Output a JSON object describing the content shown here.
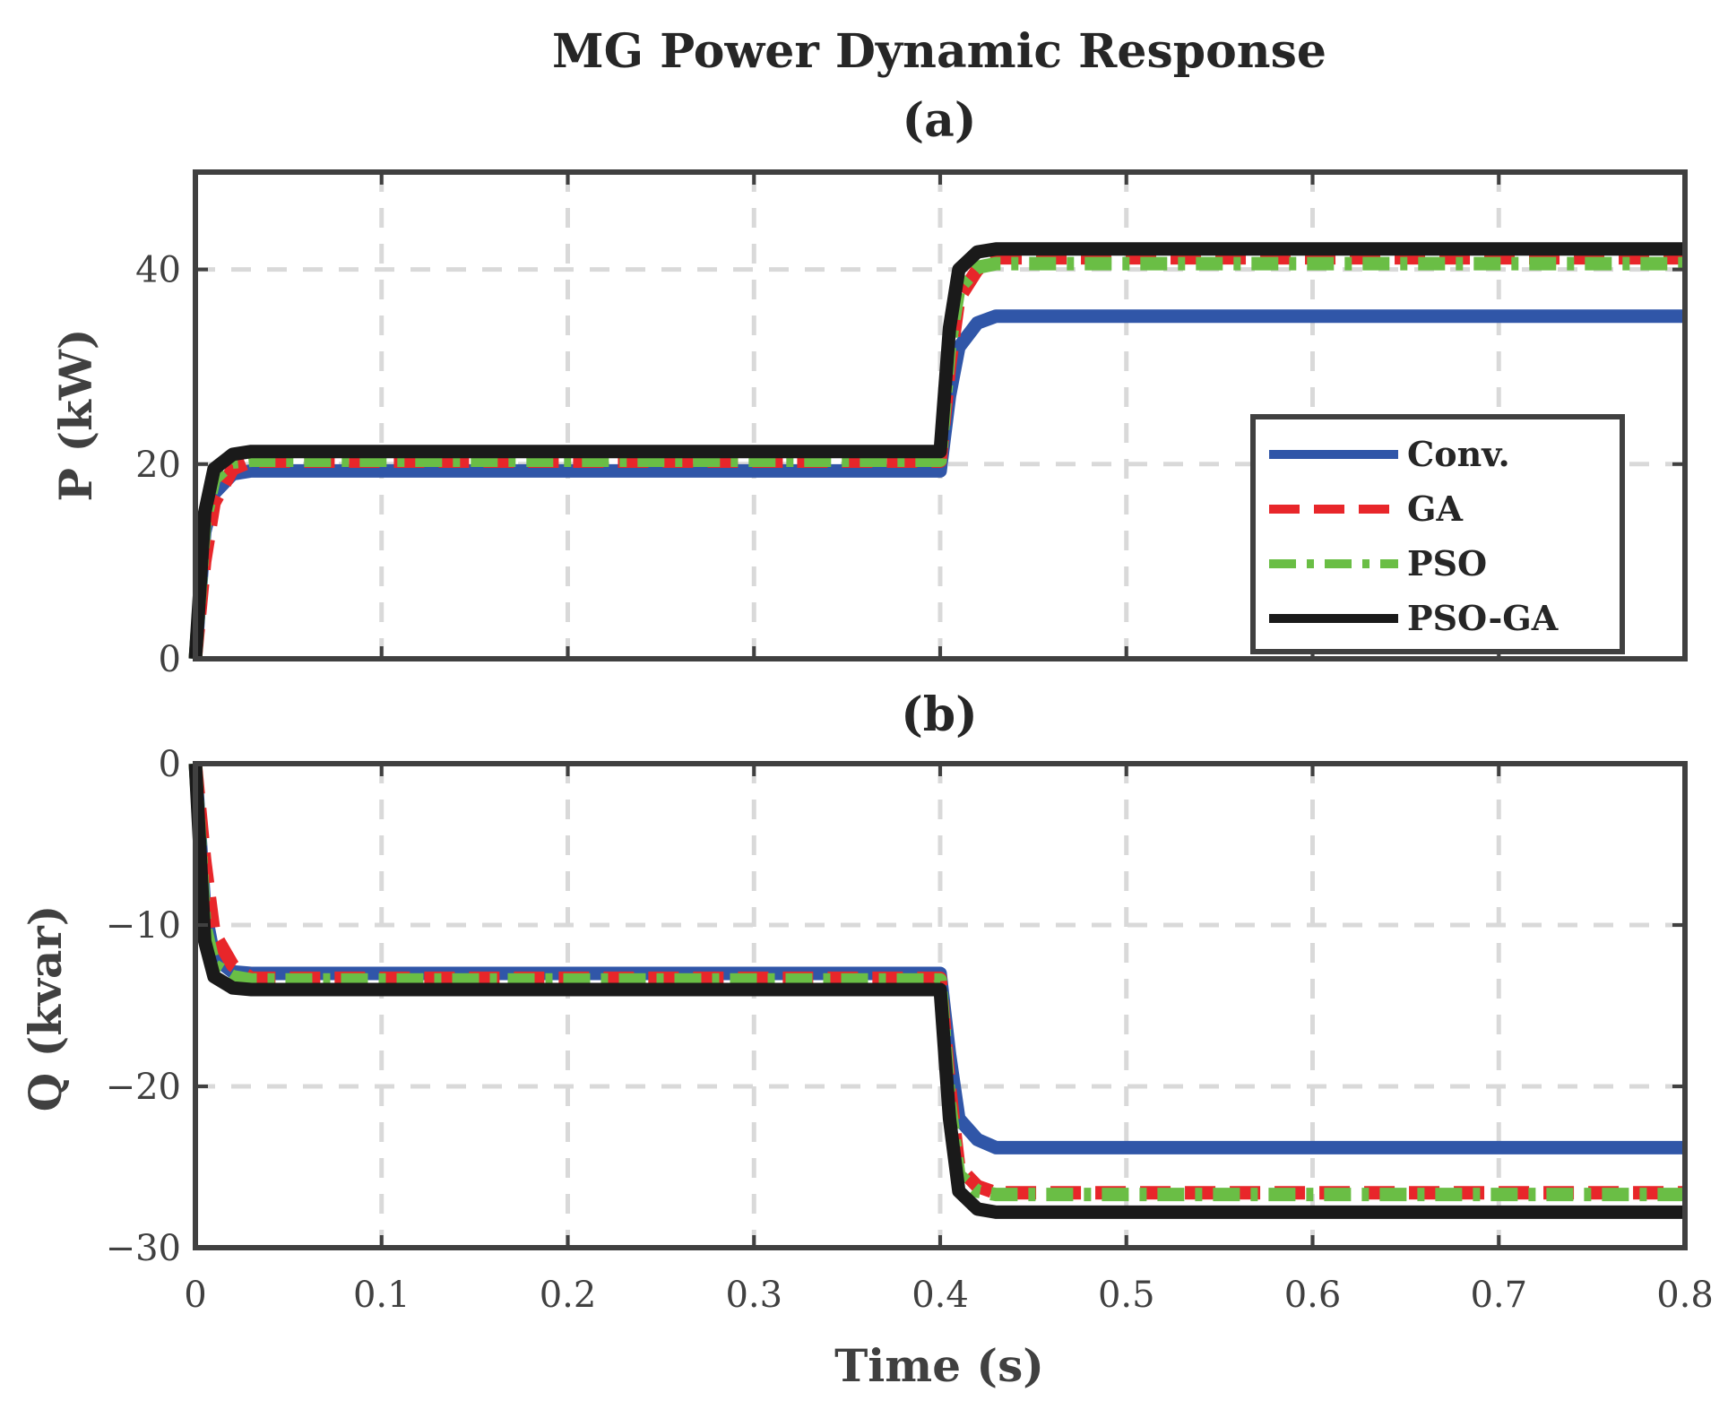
{
  "chart_data": {
    "title": "MG Power Dynamic Response",
    "xlabel": "Time (s)",
    "xlim": [
      0,
      0.8
    ],
    "x_ticks": [
      "0",
      "0.1",
      "0.2",
      "0.3",
      "0.4",
      "0.5",
      "0.6",
      "0.7",
      "0.8"
    ],
    "legend": {
      "placement": "inside lower-right of panel (a)",
      "entries": [
        {
          "name": "Conv.",
          "color": "#3056A8",
          "style": "solid"
        },
        {
          "name": "GA",
          "color": "#E8262A",
          "style": "dashed"
        },
        {
          "name": "PSO",
          "color": "#6ABE45",
          "style": "dashdot"
        },
        {
          "name": "PSO-GA",
          "color": "#1A1A1A",
          "style": "solid"
        }
      ]
    },
    "panels": [
      {
        "label": "(a)",
        "type": "line",
        "ylabel": "P (kW)",
        "ylim": [
          0,
          50
        ],
        "y_ticks": [
          {
            "value": 0,
            "label": "0"
          },
          {
            "value": 20,
            "label": "20"
          },
          {
            "value": 40,
            "label": "40"
          }
        ],
        "series": [
          {
            "name": "Conv.",
            "color": "#3056A8",
            "x": [
              0,
              0.005,
              0.01,
              0.02,
              0.03,
              0.4,
              0.405,
              0.41,
              0.42,
              0.43,
              0.8
            ],
            "y": [
              0,
              13,
              17,
              19,
              19.3,
              19.3,
              27,
              32,
              34.5,
              35.2,
              35.2
            ]
          },
          {
            "name": "GA",
            "color": "#E8262A",
            "x": [
              0,
              0.005,
              0.01,
              0.02,
              0.03,
              0.4,
              0.405,
              0.41,
              0.42,
              0.43,
              0.8
            ],
            "y": [
              0,
              10,
              16,
              19.5,
              20.3,
              20.3,
              30,
              37,
              40,
              41.2,
              41.2
            ]
          },
          {
            "name": "PSO",
            "color": "#6ABE45",
            "x": [
              0,
              0.005,
              0.01,
              0.02,
              0.03,
              0.4,
              0.405,
              0.41,
              0.42,
              0.43,
              0.8
            ],
            "y": [
              0,
              14,
              18.5,
              20.2,
              20.4,
              20.4,
              32,
              38,
              40.2,
              40.6,
              40.6
            ]
          },
          {
            "name": "PSO-GA",
            "color": "#1A1A1A",
            "x": [
              0,
              0.005,
              0.01,
              0.02,
              0.03,
              0.4,
              0.405,
              0.41,
              0.42,
              0.43,
              0.8
            ],
            "y": [
              0,
              15,
              19.5,
              21,
              21.3,
              21.3,
              34,
              40,
              41.8,
              42.1,
              42.1
            ]
          }
        ]
      },
      {
        "label": "(b)",
        "type": "line",
        "ylabel": "Q (kvar)",
        "ylim": [
          -30,
          0
        ],
        "y_ticks": [
          {
            "value": 0,
            "label": "0"
          },
          {
            "value": -10,
            "label": "−10"
          },
          {
            "value": -20,
            "label": "−20"
          },
          {
            "value": -30,
            "label": "−30"
          }
        ],
        "series": [
          {
            "name": "Conv.",
            "color": "#3056A8",
            "x": [
              0,
              0.005,
              0.01,
              0.02,
              0.03,
              0.4,
              0.405,
              0.41,
              0.42,
              0.43,
              0.8
            ],
            "y": [
              0,
              -9,
              -12,
              -12.9,
              -13,
              -13,
              -18,
              -22,
              -23.3,
              -23.8,
              -23.8
            ]
          },
          {
            "name": "GA",
            "color": "#E8262A",
            "x": [
              0,
              0.005,
              0.01,
              0.02,
              0.03,
              0.4,
              0.405,
              0.41,
              0.42,
              0.43,
              0.8
            ],
            "y": [
              0,
              -6,
              -10.5,
              -12.5,
              -13.3,
              -13.3,
              -20,
              -25,
              -26.2,
              -26.6,
              -26.6
            ]
          },
          {
            "name": "PSO",
            "color": "#6ABE45",
            "x": [
              0,
              0.005,
              0.01,
              0.02,
              0.03,
              0.4,
              0.405,
              0.41,
              0.42,
              0.43,
              0.8
            ],
            "y": [
              0,
              -10,
              -12.5,
              -13.2,
              -13.4,
              -13.4,
              -21,
              -25.5,
              -26.5,
              -26.7,
              -26.7
            ]
          },
          {
            "name": "PSO-GA",
            "color": "#1A1A1A",
            "x": [
              0,
              0.005,
              0.01,
              0.02,
              0.03,
              0.4,
              0.405,
              0.41,
              0.42,
              0.43,
              0.8
            ],
            "y": [
              0,
              -11,
              -13.2,
              -13.9,
              -14,
              -14,
              -22,
              -26.5,
              -27.6,
              -27.8,
              -27.8
            ]
          }
        ]
      }
    ]
  }
}
